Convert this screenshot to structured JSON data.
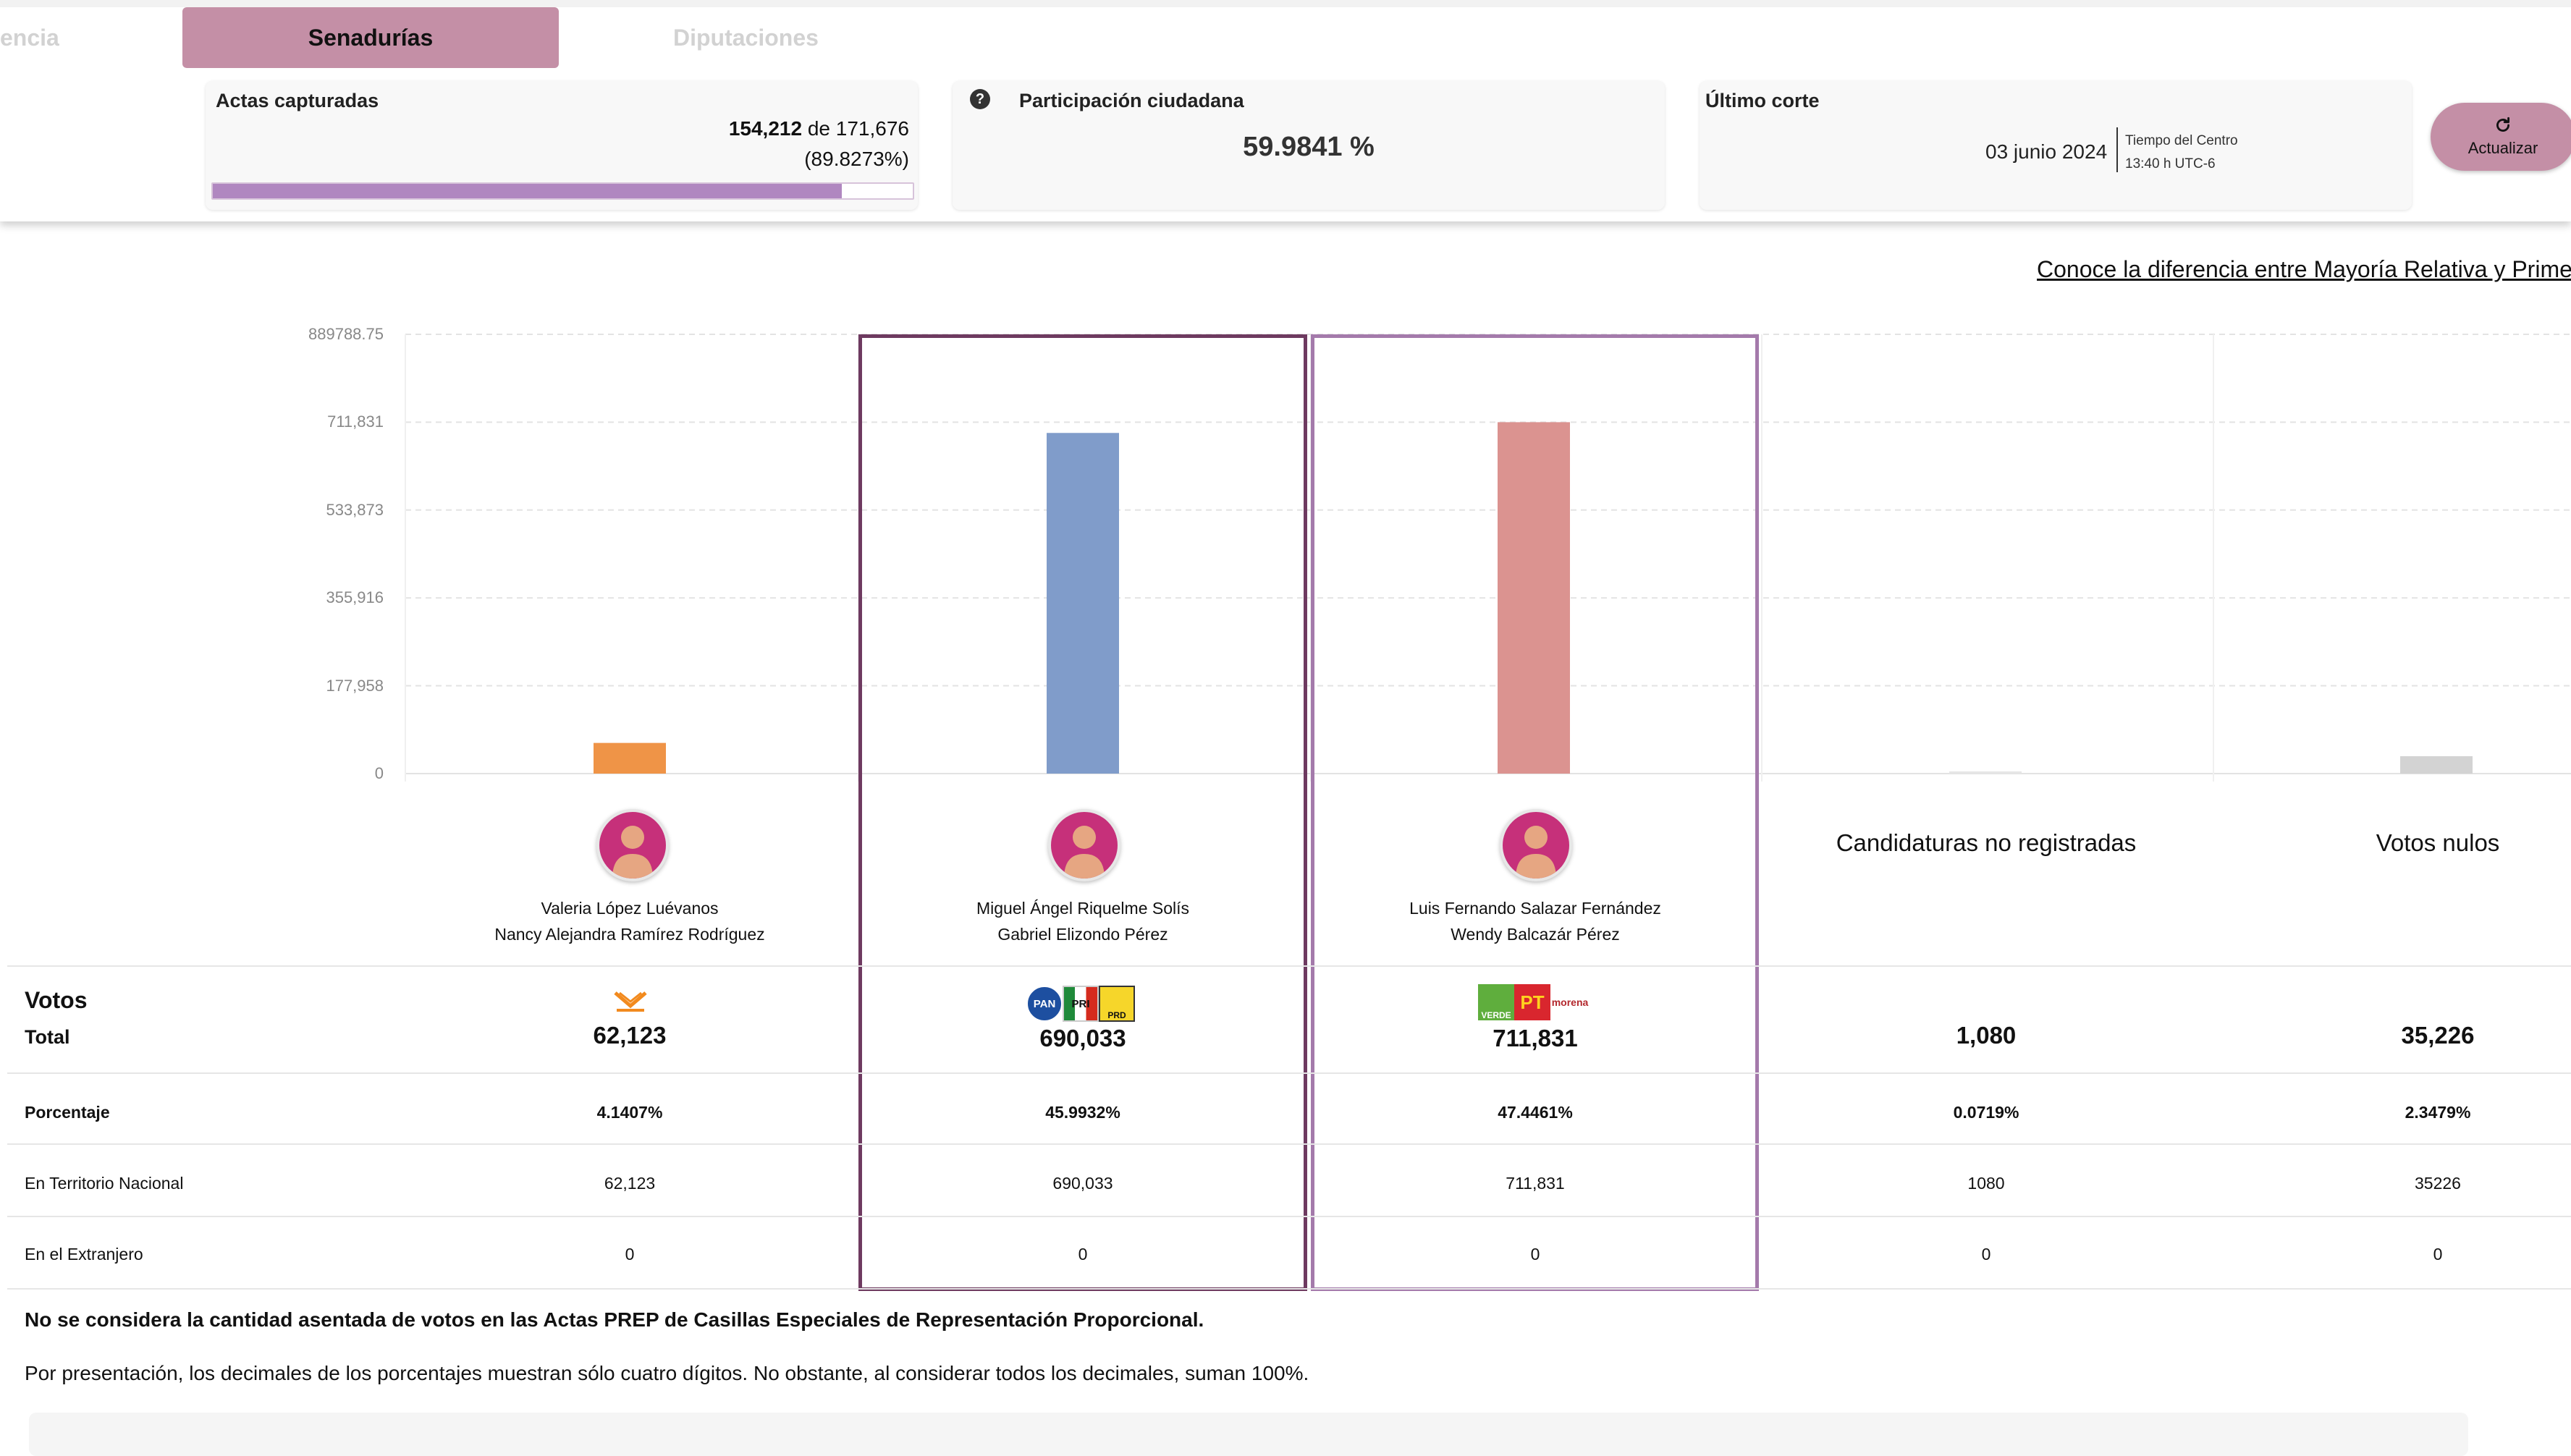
{
  "tabs": {
    "left_partial": "encia",
    "active": "Senadurías",
    "right": "Diputaciones"
  },
  "actas": {
    "title": "Actas capturadas",
    "captured": "154,212",
    "of_label": "de",
    "total": "171,676",
    "percent": "(89.8273%)",
    "progress_fraction": 0.898273
  },
  "participation": {
    "title": "Participación ciudadana",
    "value": "59.9841 %",
    "help_icon": "question-circle-icon"
  },
  "last_cut": {
    "title": "Último corte",
    "date": "03 junio 2024",
    "tz_line1": "Tiempo del Centro",
    "tz_line2": "13:40 h UTC-6"
  },
  "update_button": {
    "label": "Actualizar",
    "icon": "refresh-icon"
  },
  "link_text": "Conoce la diferencia entre Mayoría Relativa y Primer",
  "colors": {
    "accent": "#c48fa6",
    "progress": "#b087c0",
    "highlight_dark": "#6e3a60",
    "highlight_light": "#a47aab"
  },
  "chart_data": {
    "type": "bar",
    "y_ticks": [
      "889788.75",
      "711,831",
      "533,873",
      "355,916",
      "177,958",
      "0"
    ],
    "ylim": [
      0,
      889788.75
    ],
    "categories": [
      "Valeria López Luévanos / Nancy Alejandra Ramírez Rodríguez",
      "Miguel Ángel Riquelme Solís / Gabriel Elizondo Pérez",
      "Luis Fernando Salazar Fernández / Wendy Balcazár Pérez",
      "Candidaturas no registradas",
      "Votos nulos"
    ],
    "values": [
      62123,
      690033,
      711831,
      1080,
      35226
    ],
    "bar_colors": [
      "#ef9447",
      "#809cca",
      "#db9390",
      "#e6e6e6",
      "#d3d3d3"
    ]
  },
  "candidates": [
    {
      "name1": "Valeria López Luévanos",
      "name2": "Nancy Alejandra Ramírez Rodríguez",
      "party_logos": [
        "mc-logo"
      ],
      "total": "62,123",
      "percent": "4.1407%",
      "territorio": "62,123",
      "extranjero": "0"
    },
    {
      "name1": "Miguel Ángel Riquelme Solís",
      "name2": "Gabriel Elizondo Pérez",
      "party_logos": [
        "pan-logo",
        "pri-logo",
        "prd-logo"
      ],
      "party_labels": {
        "pan": "PAN",
        "pri": "PRI",
        "prd": "PRD"
      },
      "total": "690,033",
      "percent": "45.9932%",
      "territorio": "690,033",
      "extranjero": "0"
    },
    {
      "name1": "Luis Fernando Salazar Fernández",
      "name2": "Wendy Balcazár Pérez",
      "party_logos": [
        "verde-logo",
        "pt-logo",
        "morena-logo"
      ],
      "party_labels": {
        "verde": "VERDE",
        "pt": "PT",
        "morena": "morena"
      },
      "total": "711,831",
      "percent": "47.4461%",
      "territorio": "711,831",
      "extranjero": "0"
    },
    {
      "name1": "Candidaturas no registradas",
      "total": "1,080",
      "percent": "0.0719%",
      "territorio": "1080",
      "extranjero": "0"
    },
    {
      "name1": "Votos nulos",
      "total": "35,226",
      "percent": "2.3479%",
      "territorio": "35226",
      "extranjero": "0"
    }
  ],
  "table_labels": {
    "votos": "Votos",
    "total": "Total",
    "porcentaje": "Porcentaje",
    "territorio": "En Territorio Nacional",
    "extranjero": "En el Extranjero"
  },
  "notes": {
    "bold": "No se considera la cantidad asentada de votos en las Actas PREP de Casillas Especiales de Representación Proporcional.",
    "normal": "Por presentación, los decimales de los porcentajes muestran sólo cuatro dígitos. No obstante, al considerar todos los decimales, suman 100%."
  }
}
